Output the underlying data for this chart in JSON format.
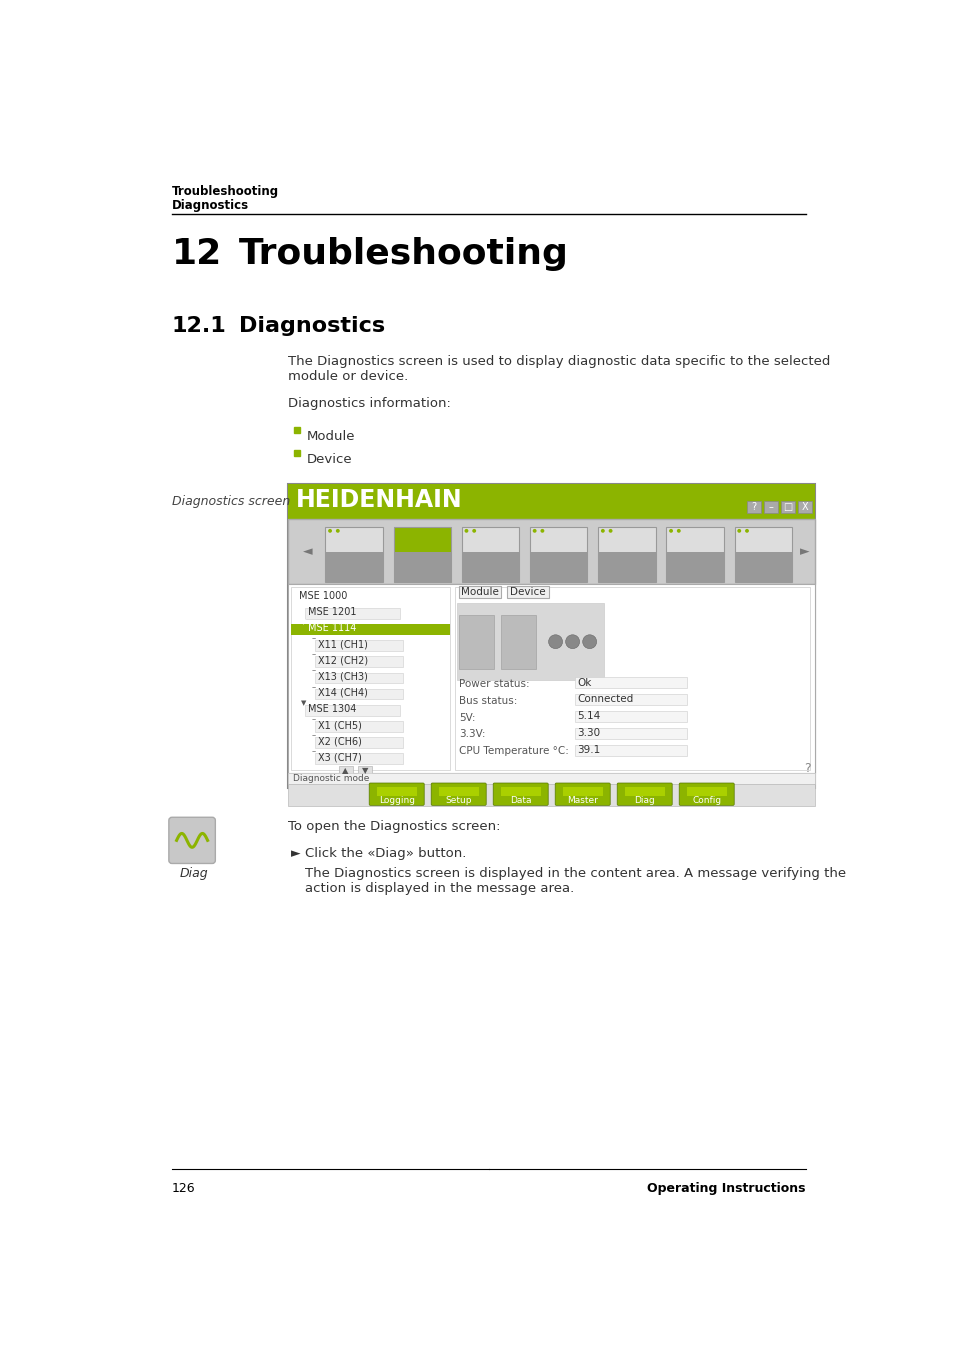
{
  "bg_color": "#ffffff",
  "header_line1": "Troubleshooting",
  "header_line2": "Diagnostics",
  "chapter_num": "12",
  "chapter_title": "Troubleshooting",
  "section_num": "12.1",
  "section_title": "Diagnostics",
  "body_text1": "The Diagnostics screen is used to display diagnostic data specific to the selected\nmodule or device.",
  "body_text2": "Diagnostics information:",
  "bullet_color": "#8cb400",
  "bullets": [
    "Module",
    "Device"
  ],
  "sidebar_label": "Diagnostics screen",
  "diag_label": "Diag",
  "open_text": "To open the Diagnostics screen:",
  "arrow_text": "Click the «Diag» button.",
  "follow_text": "The Diagnostics screen is displayed in the content area. A message verifying the\naction is displayed in the message area.",
  "footer_page": "126",
  "footer_right": "Operating Instructions",
  "heidenhain_green": "#8cb400"
}
